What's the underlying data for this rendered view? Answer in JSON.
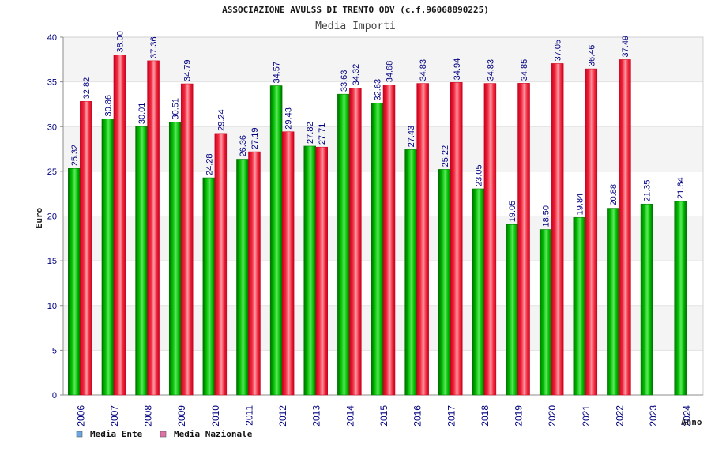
{
  "chart_data": {
    "type": "bar",
    "title": "ASSOCIAZIONE AVULSS DI TRENTO ODV (c.f.96068890225)",
    "subtitle": "Media Importi",
    "xlabel": "Anno",
    "ylabel": "Euro",
    "ylim": [
      0,
      40
    ],
    "yticks": [
      0,
      5,
      10,
      15,
      20,
      25,
      30,
      35,
      40
    ],
    "grid": true,
    "data_labels": true,
    "legend": "bottom-left",
    "categories": [
      "2006",
      "2007",
      "2008",
      "2009",
      "2010",
      "2011",
      "2012",
      "2013",
      "2014",
      "2015",
      "2016",
      "2017",
      "2018",
      "2019",
      "2020",
      "2021",
      "2022",
      "2023",
      "2024"
    ],
    "series": [
      {
        "name": "Media Ente",
        "values": [
          25.32,
          30.86,
          30.01,
          30.51,
          24.28,
          26.36,
          34.57,
          27.82,
          33.63,
          32.63,
          27.43,
          25.22,
          23.05,
          19.05,
          18.5,
          19.84,
          20.88,
          21.35,
          21.64
        ],
        "color": "#00c000",
        "edge_color": "#006e00",
        "highlight_color": "#5ee65e",
        "legend_color": "#6aa6e6"
      },
      {
        "name": "Media Nazionale",
        "values": [
          32.82,
          38.0,
          37.36,
          34.79,
          29.24,
          27.19,
          29.43,
          27.71,
          34.32,
          34.68,
          34.83,
          34.94,
          34.83,
          34.85,
          37.05,
          36.46,
          37.49,
          null,
          null
        ],
        "color": "#f0283c",
        "edge_color": "#c8001e",
        "highlight_color": "#ff9aa6",
        "legend_color": "#e070a8"
      }
    ],
    "colors": {
      "tick_text": "#000080",
      "data_label": "#000080",
      "band": "#f4f4f4",
      "grid": "#e2e2e2",
      "axis": "#8c8c8c"
    }
  }
}
